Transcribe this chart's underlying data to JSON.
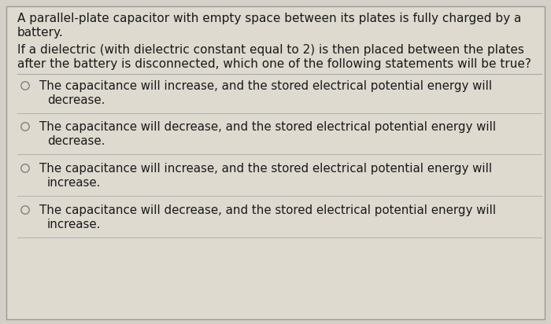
{
  "bg_color": "#d4d0c8",
  "panel_color": "#dedad0",
  "border_color": "#999999",
  "text_color": "#1a1a1a",
  "font_size_para": 11.0,
  "font_size_option": 10.8,
  "circle_color": "#777777",
  "divider_color": "#aaaaaa",
  "para1_lines": [
    "A parallel-plate capacitor with empty space between its plates is fully charged by a",
    "battery."
  ],
  "para2_lines": [
    "If a dielectric (with dielectric constant equal to 2) is then placed between the plates",
    "after the battery is disconnected, which one of the following statements will be true?"
  ],
  "option_lines": [
    [
      "The capacitance will increase, and the stored electrical potential energy will",
      "decrease."
    ],
    [
      "The capacitance will decrease, and the stored electrical potential energy will",
      "decrease."
    ],
    [
      "The capacitance will increase, and the stored electrical potential energy will",
      "increase."
    ],
    [
      "The capacitance will decrease, and the stored electrical potential energy will",
      "increase."
    ]
  ]
}
